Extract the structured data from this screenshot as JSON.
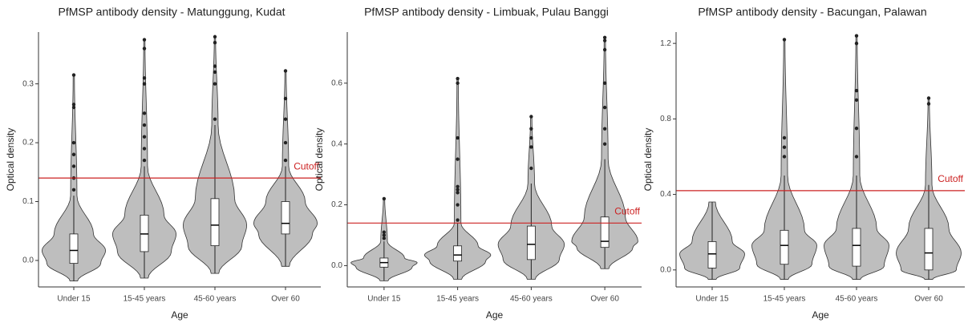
{
  "chart_data": [
    {
      "type": "violin",
      "title": "PfMSP antibody density - Matunggung, Kudat",
      "x_label": "Age",
      "y_label": "Optical density",
      "categories": [
        "Under 15",
        "15-45 years",
        "45-60 years",
        "Over 60"
      ],
      "boxes": [
        {
          "whisker_low": -0.035,
          "q1": -0.005,
          "median": 0.017,
          "q3": 0.045,
          "whisker_high": 0.11,
          "outliers": [
            0.12,
            0.14,
            0.16,
            0.18,
            0.2,
            0.26,
            0.265,
            0.315
          ]
        },
        {
          "whisker_low": -0.03,
          "q1": 0.015,
          "median": 0.045,
          "q3": 0.077,
          "whisker_high": 0.16,
          "outliers": [
            0.17,
            0.19,
            0.21,
            0.23,
            0.25,
            0.3,
            0.31,
            0.36,
            0.375
          ]
        },
        {
          "whisker_low": -0.022,
          "q1": 0.025,
          "median": 0.06,
          "q3": 0.105,
          "whisker_high": 0.23,
          "outliers": [
            0.24,
            0.3,
            0.32,
            0.33,
            0.37,
            0.38
          ]
        },
        {
          "whisker_low": -0.01,
          "q1": 0.045,
          "median": 0.063,
          "q3": 0.1,
          "whisker_high": 0.16,
          "outliers": [
            0.17,
            0.2,
            0.24,
            0.275,
            0.322
          ]
        }
      ],
      "ylim": [
        -0.045,
        0.388
      ],
      "yticks": [
        {
          "value": 0,
          "label": "0.0"
        },
        0.1,
        0.2,
        0.3
      ],
      "cutoff": {
        "value": 0.14,
        "label": "Cutoff",
        "color": "#cc2222"
      },
      "fill": "#bebebe"
    },
    {
      "type": "violin",
      "title": "PfMSP antibody density - Limbuak, Pulau Banggi",
      "x_label": "Age",
      "y_label": "Optical density",
      "categories": [
        "Under 15",
        "15-45 years",
        "45-60 years",
        "Over 60"
      ],
      "boxes": [
        {
          "whisker_low": -0.05,
          "q1": -0.005,
          "median": 0.01,
          "q3": 0.025,
          "whisker_high": 0.08,
          "outliers": [
            0.09,
            0.1,
            0.11,
            0.22
          ]
        },
        {
          "whisker_low": -0.045,
          "q1": 0.015,
          "median": 0.035,
          "q3": 0.065,
          "whisker_high": 0.14,
          "outliers": [
            0.15,
            0.2,
            0.24,
            0.25,
            0.26,
            0.35,
            0.42,
            0.6,
            0.615
          ]
        },
        {
          "whisker_low": -0.045,
          "q1": 0.02,
          "median": 0.07,
          "q3": 0.13,
          "whisker_high": 0.27,
          "outliers": [
            0.32,
            0.39,
            0.42,
            0.45,
            0.49
          ]
        },
        {
          "whisker_low": -0.01,
          "q1": 0.06,
          "median": 0.08,
          "q3": 0.16,
          "whisker_high": 0.35,
          "outliers": [
            0.4,
            0.45,
            0.52,
            0.6,
            0.71,
            0.74,
            0.75
          ]
        }
      ],
      "ylim": [
        -0.07,
        0.768
      ],
      "yticks": [
        {
          "value": 0,
          "label": "0.0"
        },
        0.2,
        0.4,
        0.6
      ],
      "cutoff": {
        "value": 0.14,
        "label": "Cutoff",
        "color": "#cc2222"
      },
      "fill": "#bebebe"
    },
    {
      "type": "violin",
      "title": "PfMSP antibody density - Bacungan, Palawan",
      "x_label": "Age",
      "y_label": "Optical density",
      "categories": [
        "Under 15",
        "15-45 years",
        "45-60 years",
        "Over 60"
      ],
      "boxes": [
        {
          "whisker_low": -0.05,
          "q1": 0.01,
          "median": 0.085,
          "q3": 0.15,
          "whisker_high": 0.36,
          "outliers": []
        },
        {
          "whisker_low": -0.05,
          "q1": 0.03,
          "median": 0.13,
          "q3": 0.21,
          "whisker_high": 0.5,
          "outliers": [
            0.6,
            0.65,
            0.7,
            1.22
          ]
        },
        {
          "whisker_low": -0.05,
          "q1": 0.02,
          "median": 0.13,
          "q3": 0.22,
          "whisker_high": 0.5,
          "outliers": [
            0.6,
            0.75,
            0.9,
            0.95,
            1.2,
            1.24
          ]
        },
        {
          "whisker_low": -0.05,
          "q1": 0.0,
          "median": 0.09,
          "q3": 0.22,
          "whisker_high": 0.45,
          "outliers": [
            0.88,
            0.91
          ]
        }
      ],
      "ylim": [
        -0.09,
        1.26
      ],
      "yticks": [
        {
          "value": 0,
          "label": "0.0"
        },
        0.4,
        0.8,
        1.2
      ],
      "cutoff": {
        "value": 0.42,
        "label": "Cutoff",
        "color": "#cc2222"
      },
      "fill": "#bebebe"
    }
  ]
}
